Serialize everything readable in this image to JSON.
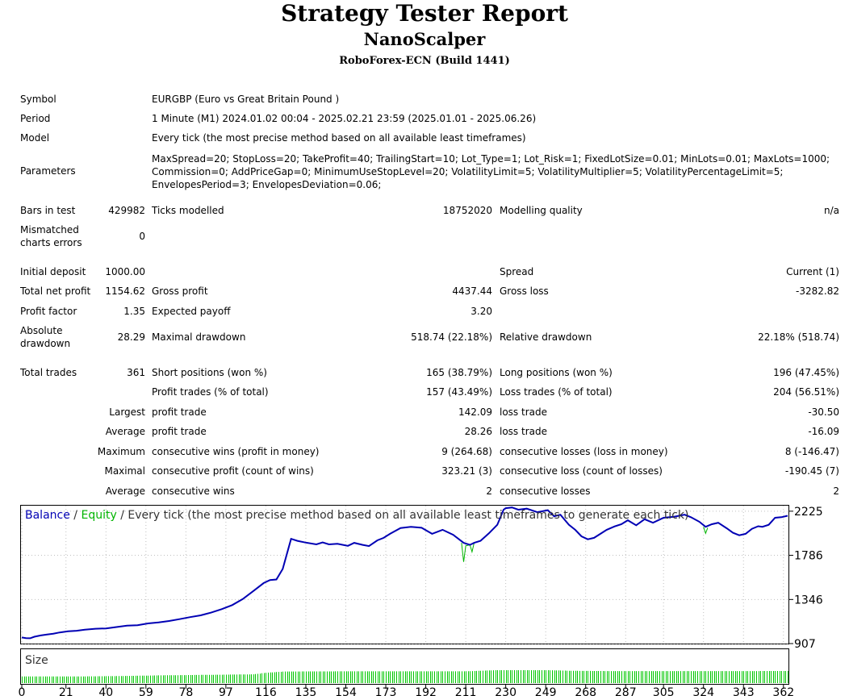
{
  "header": {
    "title": "Strategy Tester Report",
    "ea_name": "NanoScalper",
    "server": "RoboForex-ECN (Build 1441)"
  },
  "info": {
    "symbol_label": "Symbol",
    "symbol": "EURGBP (Euro vs Great Britain Pound )",
    "period_label": "Period",
    "period": "1 Minute (M1) 2024.01.02 00:04 - 2025.02.21 23:59 (2025.01.01 - 2025.06.26)",
    "model_label": "Model",
    "model": "Every tick (the most precise method based on all available least timeframes)",
    "params_label": "Parameters",
    "params": "MaxSpread=20; StopLoss=20; TakeProfit=40; TrailingStart=10; Lot_Type=1; Lot_Risk=1; FixedLotSize=0.01; MinLots=0.01; MaxLots=1000; Commission=0; AddPriceGap=0; MinimumUseStopLevel=20; VolatilityLimit=5; VolatilityMultiplier=5; VolatilityPercentageLimit=5; EnvelopesPeriod=3; EnvelopesDeviation=0.06;"
  },
  "stats": {
    "bars_label": "Bars in test",
    "bars": "429982",
    "ticks_label": "Ticks modelled",
    "ticks": "18752020",
    "quality_label": "Modelling quality",
    "quality": "n/a",
    "mismatch_label": "Mismatched charts errors",
    "mismatch": "0",
    "deposit_label": "Initial deposit",
    "deposit": "1000.00",
    "spread_label": "Spread",
    "spread": "Current (1)",
    "net_label": "Total net profit",
    "net": "1154.62",
    "gp_label": "Gross profit",
    "gp": "4437.44",
    "gl_label": "Gross loss",
    "gl": "-3282.82",
    "pf_label": "Profit factor",
    "pf": "1.35",
    "ep_label": "Expected payoff",
    "ep": "3.20",
    "ad_label": "Absolute drawdown",
    "ad": "28.29",
    "md_label": "Maximal drawdown",
    "md": "518.74 (22.18%)",
    "rd_label": "Relative drawdown",
    "rd": "22.18% (518.74)",
    "tt_label": "Total trades",
    "tt": "361",
    "sp_label": "Short positions (won %)",
    "sp": "165 (38.79%)",
    "lp_label": "Long positions (won %)",
    "lp": "196 (47.45%)",
    "pt_label": "Profit trades (% of total)",
    "pt": "157 (43.49%)",
    "lt_label": "Loss trades (% of total)",
    "lt": "204 (56.51%)",
    "largest": "Largest",
    "l_pt_label": "profit trade",
    "l_pt": "142.09",
    "l_lt_label": "loss trade",
    "l_lt": "-30.50",
    "average": "Average",
    "a_pt_label": "profit trade",
    "a_pt": "28.26",
    "a_lt_label": "loss trade",
    "a_lt": "-16.09",
    "maximum": "Maximum",
    "m_cw_label": "consecutive wins (profit in money)",
    "m_cw": "9 (264.68)",
    "m_cl_label": "consecutive losses (loss in money)",
    "m_cl": "8 (-146.47)",
    "maximal": "Maximal",
    "x_cp_label": "consecutive profit (count of wins)",
    "x_cp": "323.21 (3)",
    "x_cl_label": "consecutive loss (count of losses)",
    "x_cl": "-190.45 (7)",
    "average2": "Average",
    "av_cw_label": "consecutive wins",
    "av_cw": "2",
    "av_cl_label": "consecutive losses",
    "av_cl": "2"
  },
  "chart_data": {
    "type": "line",
    "legend": {
      "balance": "Balance",
      "sep": " / ",
      "equity": "Equity",
      "rest": " / Every tick (the most precise method based on all available least timeframes to generate each tick)"
    },
    "series": [
      {
        "name": "Balance",
        "color": "#0000b4",
        "values": [
          [
            0,
            968
          ],
          [
            2,
            962
          ],
          [
            4,
            960
          ],
          [
            6,
            975
          ],
          [
            9,
            988
          ],
          [
            12,
            998
          ],
          [
            15,
            1006
          ],
          [
            18,
            1018
          ],
          [
            22,
            1030
          ],
          [
            26,
            1035
          ],
          [
            30,
            1045
          ],
          [
            35,
            1055
          ],
          [
            40,
            1058
          ],
          [
            45,
            1072
          ],
          [
            50,
            1085
          ],
          [
            55,
            1090
          ],
          [
            60,
            1108
          ],
          [
            65,
            1118
          ],
          [
            70,
            1132
          ],
          [
            75,
            1150
          ],
          [
            80,
            1170
          ],
          [
            85,
            1188
          ],
          [
            90,
            1215
          ],
          [
            95,
            1250
          ],
          [
            100,
            1290
          ],
          [
            105,
            1350
          ],
          [
            110,
            1430
          ],
          [
            115,
            1510
          ],
          [
            118,
            1540
          ],
          [
            121,
            1545
          ],
          [
            124,
            1650
          ],
          [
            126,
            1800
          ],
          [
            128,
            1950
          ],
          [
            131,
            1930
          ],
          [
            135,
            1912
          ],
          [
            140,
            1895
          ],
          [
            143,
            1915
          ],
          [
            146,
            1895
          ],
          [
            150,
            1900
          ],
          [
            155,
            1880
          ],
          [
            158,
            1910
          ],
          [
            162,
            1890
          ],
          [
            165,
            1878
          ],
          [
            169,
            1935
          ],
          [
            172,
            1960
          ],
          [
            175,
            2000
          ],
          [
            180,
            2058
          ],
          [
            185,
            2070
          ],
          [
            190,
            2060
          ],
          [
            195,
            2000
          ],
          [
            200,
            2040
          ],
          [
            205,
            1990
          ],
          [
            210,
            1910
          ],
          [
            213,
            1890
          ],
          [
            215,
            1910
          ],
          [
            218,
            1930
          ],
          [
            222,
            2005
          ],
          [
            226,
            2090
          ],
          [
            228,
            2190
          ],
          [
            229,
            2240
          ],
          [
            230,
            2255
          ],
          [
            233,
            2262
          ],
          [
            236,
            2240
          ],
          [
            240,
            2250
          ],
          [
            245,
            2215
          ],
          [
            250,
            2235
          ],
          [
            253,
            2175
          ],
          [
            256,
            2190
          ],
          [
            260,
            2090
          ],
          [
            263,
            2040
          ],
          [
            266,
            1975
          ],
          [
            269,
            1945
          ],
          [
            272,
            1960
          ],
          [
            275,
            2000
          ],
          [
            278,
            2040
          ],
          [
            282,
            2075
          ],
          [
            285,
            2095
          ],
          [
            288,
            2135
          ],
          [
            292,
            2085
          ],
          [
            296,
            2145
          ],
          [
            300,
            2110
          ],
          [
            305,
            2160
          ],
          [
            310,
            2170
          ],
          [
            315,
            2190
          ],
          [
            318,
            2165
          ],
          [
            322,
            2120
          ],
          [
            325,
            2070
          ],
          [
            328,
            2095
          ],
          [
            331,
            2110
          ],
          [
            335,
            2055
          ],
          [
            338,
            2010
          ],
          [
            341,
            1985
          ],
          [
            344,
            2000
          ],
          [
            347,
            2050
          ],
          [
            350,
            2075
          ],
          [
            352,
            2070
          ],
          [
            355,
            2090
          ],
          [
            358,
            2160
          ],
          [
            361,
            2165
          ],
          [
            364,
            2180
          ]
        ]
      },
      {
        "name": "Equity",
        "color": "#00b400",
        "values": [
          [
            209,
            1910
          ],
          [
            210,
            1720
          ],
          [
            211,
            1880
          ],
          [
            213,
            1890
          ],
          [
            214,
            1820
          ],
          [
            215,
            1910
          ],
          [
            324,
            2070
          ],
          [
            325,
            2005
          ],
          [
            326,
            2060
          ]
        ]
      },
      {
        "name": "Size",
        "color": "#00c800",
        "values": [
          [
            0,
            0.51
          ],
          [
            22,
            0.51
          ],
          [
            44,
            0.54
          ],
          [
            66,
            0.6
          ],
          [
            88,
            0.64
          ],
          [
            110,
            0.68
          ],
          [
            116,
            0.8
          ],
          [
            125,
            0.9
          ],
          [
            150,
            0.91
          ],
          [
            180,
            0.91
          ],
          [
            210,
            0.91
          ],
          [
            225,
            1.0
          ],
          [
            250,
            1.0
          ],
          [
            262,
            0.95
          ],
          [
            280,
            0.93
          ],
          [
            310,
            0.93
          ],
          [
            340,
            0.93
          ],
          [
            364,
            0.94
          ]
        ]
      }
    ],
    "yticks": [
      2225,
      1786,
      1346,
      907
    ],
    "xticks": [
      0,
      21,
      40,
      59,
      78,
      97,
      116,
      135,
      154,
      173,
      192,
      211,
      230,
      249,
      268,
      287,
      305,
      324,
      343,
      362
    ],
    "ylim": [
      907,
      2264
    ],
    "xlim": [
      0,
      364
    ],
    "size_label": "Size"
  }
}
